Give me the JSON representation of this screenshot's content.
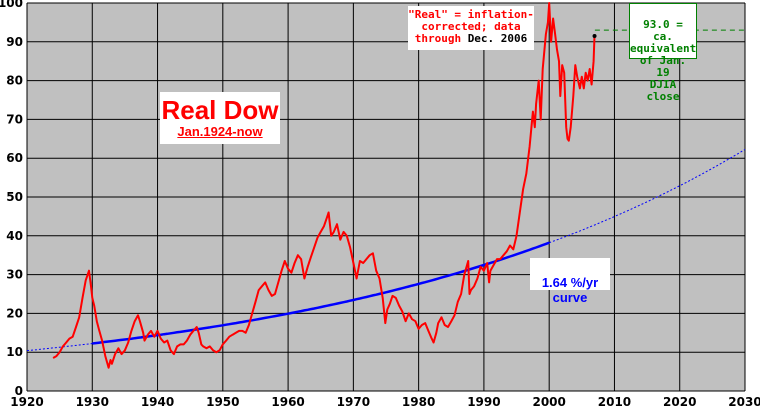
{
  "chart_data": {
    "type": "line",
    "title": "Real Dow",
    "subtitle": "Jan.1924-now",
    "xlabel": "",
    "ylabel": "",
    "xlim": [
      1920,
      2030
    ],
    "ylim": [
      0,
      100
    ],
    "x_ticks": [
      "1920",
      "1930",
      "1940",
      "1950",
      "1960",
      "1970",
      "1980",
      "1990",
      "2000",
      "2010",
      "2020",
      "2030"
    ],
    "y_ticks": [
      "0",
      "10",
      "20",
      "30",
      "40",
      "50",
      "60",
      "70",
      "80",
      "90",
      "100"
    ],
    "grid": true,
    "colors": {
      "plot_bg": "#c0c0c0",
      "dow": "#ff0000",
      "curve": "#0000ff",
      "ref": "#008000"
    },
    "series": [
      {
        "type": "line",
        "points": [
          [
            1924.0,
            8.5
          ],
          [
            1924.5,
            9.0
          ],
          [
            1925.0,
            10.0
          ],
          [
            1925.5,
            11.5
          ],
          [
            1926.0,
            12.5
          ],
          [
            1926.5,
            13.5
          ],
          [
            1927.0,
            14.0
          ],
          [
            1927.5,
            16.5
          ],
          [
            1928.0,
            19.0
          ],
          [
            1928.5,
            24.0
          ],
          [
            1929.0,
            28.5
          ],
          [
            1929.5,
            31.0
          ],
          [
            1929.8,
            27.0
          ],
          [
            1930.0,
            24.0
          ],
          [
            1930.3,
            22.0
          ],
          [
            1930.7,
            18.0
          ],
          [
            1931.0,
            16.0
          ],
          [
            1931.5,
            13.0
          ],
          [
            1932.0,
            9.0
          ],
          [
            1932.5,
            6.0
          ],
          [
            1932.8,
            8.0
          ],
          [
            1933.0,
            7.0
          ],
          [
            1933.5,
            9.5
          ],
          [
            1934.0,
            11.0
          ],
          [
            1934.5,
            9.5
          ],
          [
            1935.0,
            10.5
          ],
          [
            1935.5,
            12.5
          ],
          [
            1936.0,
            15.5
          ],
          [
            1936.5,
            18.0
          ],
          [
            1937.0,
            19.5
          ],
          [
            1937.3,
            18.0
          ],
          [
            1937.8,
            15.0
          ],
          [
            1938.0,
            13.0
          ],
          [
            1938.5,
            14.5
          ],
          [
            1939.0,
            15.5
          ],
          [
            1939.5,
            14.0
          ],
          [
            1940.0,
            15.5
          ],
          [
            1940.5,
            13.5
          ],
          [
            1941.0,
            12.5
          ],
          [
            1941.5,
            13.0
          ],
          [
            1942.0,
            10.5
          ],
          [
            1942.5,
            9.5
          ],
          [
            1943.0,
            11.5
          ],
          [
            1943.5,
            12.0
          ],
          [
            1944.0,
            12.0
          ],
          [
            1944.5,
            13.0
          ],
          [
            1945.0,
            14.5
          ],
          [
            1945.5,
            15.5
          ],
          [
            1946.0,
            16.5
          ],
          [
            1946.3,
            15.0
          ],
          [
            1946.7,
            12.0
          ],
          [
            1947.0,
            11.5
          ],
          [
            1947.5,
            11.0
          ],
          [
            1948.0,
            11.5
          ],
          [
            1948.5,
            10.5
          ],
          [
            1949.0,
            10.0
          ],
          [
            1949.5,
            10.5
          ],
          [
            1950.0,
            12.0
          ],
          [
            1950.5,
            13.0
          ],
          [
            1951.0,
            14.0
          ],
          [
            1951.5,
            14.5
          ],
          [
            1952.0,
            15.0
          ],
          [
            1952.5,
            15.5
          ],
          [
            1953.0,
            15.5
          ],
          [
            1953.5,
            15.0
          ],
          [
            1954.0,
            17.0
          ],
          [
            1954.5,
            20.0
          ],
          [
            1955.0,
            23.0
          ],
          [
            1955.5,
            26.0
          ],
          [
            1956.0,
            27.0
          ],
          [
            1956.5,
            28.0
          ],
          [
            1957.0,
            26.0
          ],
          [
            1957.5,
            24.5
          ],
          [
            1958.0,
            25.0
          ],
          [
            1958.5,
            28.0
          ],
          [
            1959.0,
            31.0
          ],
          [
            1959.5,
            33.5
          ],
          [
            1960.0,
            31.5
          ],
          [
            1960.5,
            30.5
          ],
          [
            1961.0,
            33.0
          ],
          [
            1961.5,
            35.0
          ],
          [
            1962.0,
            34.0
          ],
          [
            1962.5,
            29.0
          ],
          [
            1963.0,
            32.0
          ],
          [
            1963.5,
            34.5
          ],
          [
            1964.0,
            37.0
          ],
          [
            1964.5,
            39.5
          ],
          [
            1965.0,
            41.0
          ],
          [
            1965.5,
            42.5
          ],
          [
            1966.0,
            45.0
          ],
          [
            1966.2,
            46.0
          ],
          [
            1966.6,
            40.0
          ],
          [
            1967.0,
            41.0
          ],
          [
            1967.5,
            43.0
          ],
          [
            1968.0,
            39.0
          ],
          [
            1968.5,
            41.0
          ],
          [
            1969.0,
            40.0
          ],
          [
            1969.5,
            37.0
          ],
          [
            1970.0,
            33.0
          ],
          [
            1970.5,
            29.0
          ],
          [
            1971.0,
            33.5
          ],
          [
            1971.5,
            33.0
          ],
          [
            1972.0,
            34.0
          ],
          [
            1972.5,
            35.0
          ],
          [
            1973.0,
            35.5
          ],
          [
            1973.5,
            31.0
          ],
          [
            1974.0,
            29.0
          ],
          [
            1974.5,
            24.0
          ],
          [
            1974.9,
            17.5
          ],
          [
            1975.2,
            21.0
          ],
          [
            1975.6,
            22.5
          ],
          [
            1976.0,
            24.5
          ],
          [
            1976.5,
            24.0
          ],
          [
            1977.0,
            22.0
          ],
          [
            1977.5,
            20.5
          ],
          [
            1978.0,
            18.0
          ],
          [
            1978.5,
            20.0
          ],
          [
            1979.0,
            18.5
          ],
          [
            1979.5,
            18.0
          ],
          [
            1980.0,
            16.0
          ],
          [
            1980.5,
            17.0
          ],
          [
            1981.0,
            17.5
          ],
          [
            1981.5,
            15.5
          ],
          [
            1982.0,
            13.5
          ],
          [
            1982.3,
            12.5
          ],
          [
            1982.7,
            15.0
          ],
          [
            1983.0,
            17.5
          ],
          [
            1983.5,
            19.0
          ],
          [
            1984.0,
            17.0
          ],
          [
            1984.5,
            16.5
          ],
          [
            1985.0,
            18.0
          ],
          [
            1985.5,
            19.5
          ],
          [
            1986.0,
            23.0
          ],
          [
            1986.5,
            25.0
          ],
          [
            1987.0,
            30.0
          ],
          [
            1987.6,
            33.5
          ],
          [
            1987.8,
            25.0
          ],
          [
            1988.0,
            26.0
          ],
          [
            1988.5,
            27.0
          ],
          [
            1989.0,
            29.0
          ],
          [
            1989.5,
            32.0
          ],
          [
            1990.0,
            31.0
          ],
          [
            1990.5,
            33.0
          ],
          [
            1990.8,
            28.0
          ],
          [
            1991.0,
            31.0
          ],
          [
            1991.5,
            32.5
          ],
          [
            1992.0,
            34.0
          ],
          [
            1992.5,
            34.0
          ],
          [
            1993.0,
            35.0
          ],
          [
            1993.5,
            36.0
          ],
          [
            1994.0,
            37.5
          ],
          [
            1994.5,
            36.5
          ],
          [
            1995.0,
            40.0
          ],
          [
            1995.5,
            46.0
          ],
          [
            1996.0,
            52.0
          ],
          [
            1996.5,
            56.0
          ],
          [
            1997.0,
            63.0
          ],
          [
            1997.5,
            72.0
          ],
          [
            1997.8,
            68.0
          ],
          [
            1998.0,
            74.0
          ],
          [
            1998.4,
            80.0
          ],
          [
            1998.7,
            70.0
          ],
          [
            1999.0,
            83.0
          ],
          [
            1999.5,
            92.0
          ],
          [
            1999.8,
            95.0
          ],
          [
            2000.0,
            100.0
          ],
          [
            2000.3,
            90.0
          ],
          [
            2000.6,
            96.0
          ],
          [
            2000.9,
            92.0
          ],
          [
            2001.2,
            88.0
          ],
          [
            2001.5,
            85.0
          ],
          [
            2001.7,
            76.0
          ],
          [
            2002.0,
            84.0
          ],
          [
            2002.3,
            82.0
          ],
          [
            2002.6,
            68.0
          ],
          [
            2002.8,
            65.0
          ],
          [
            2003.0,
            64.5
          ],
          [
            2003.3,
            68.0
          ],
          [
            2003.7,
            76.0
          ],
          [
            2004.0,
            84.0
          ],
          [
            2004.3,
            81.0
          ],
          [
            2004.7,
            78.0
          ],
          [
            2005.0,
            81.0
          ],
          [
            2005.3,
            78.0
          ],
          [
            2005.6,
            82.0
          ],
          [
            2005.9,
            80.0
          ],
          [
            2006.2,
            83.0
          ],
          [
            2006.5,
            79.0
          ],
          [
            2006.8,
            85.0
          ],
          [
            2006.95,
            91.5
          ]
        ]
      },
      {
        "type": "curve",
        "label": "1.64 %/yr\ncurve",
        "rate_pct": 1.64,
        "base_year": 1920,
        "base_value": 10.4,
        "solid_to": 2000
      }
    ],
    "reference": {
      "label": "93.0 = ca.\nequivalent\nof Jan. 19\nDJIA close",
      "value": 93.0,
      "x_start": 2007
    },
    "annotations": {
      "real_note": {
        "part1": "\"Real\" = inflation-",
        "part2": "corrected; data",
        "part3": "through",
        "part4": "Dec. 2006"
      }
    }
  }
}
